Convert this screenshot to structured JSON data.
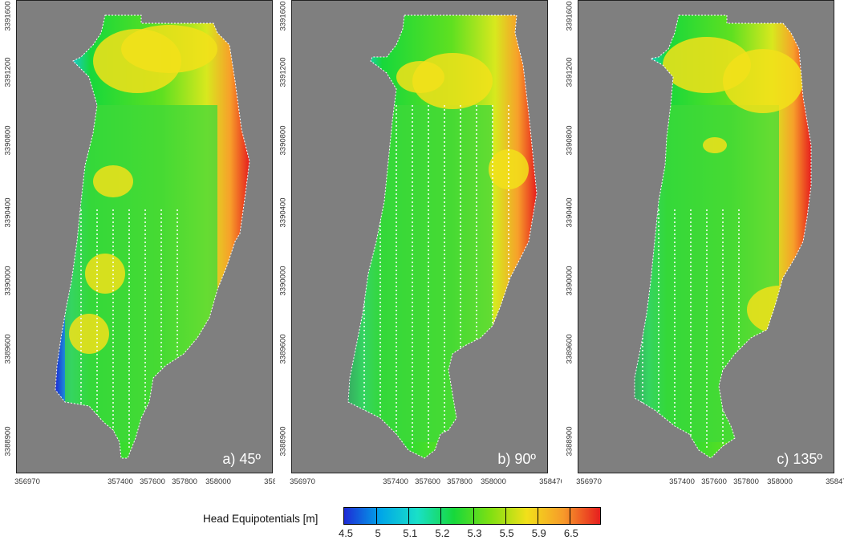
{
  "panels": [
    {
      "label": "a) 45º",
      "rotation": 45
    },
    {
      "label": "b) 90º",
      "rotation": 90
    },
    {
      "label": "c) 135º",
      "rotation": 135
    }
  ],
  "axes": {
    "x_ticks": [
      "356970",
      "357400",
      "357600",
      "357800",
      "358000",
      "358470"
    ],
    "y_ticks": [
      "3391600",
      "3391200",
      "3390800",
      "3390400",
      "3390000",
      "3389600",
      "3388900"
    ]
  },
  "legend": {
    "title": "Head Equipotentials [m]",
    "ticks": [
      "4.5",
      "5",
      "5.1",
      "5.2",
      "5.3",
      "5.5",
      "5.9",
      "6.5"
    ],
    "colors": [
      "#1e2bd6",
      "#00a6e8",
      "#19e0c8",
      "#17d83b",
      "#7fe012",
      "#f2e01a",
      "#f79a2a",
      "#e61e1e"
    ]
  },
  "colors": {
    "background": "#7f7f7f",
    "low": "#2233cc",
    "mid": "#33cc33",
    "high": "#ee2222"
  }
}
